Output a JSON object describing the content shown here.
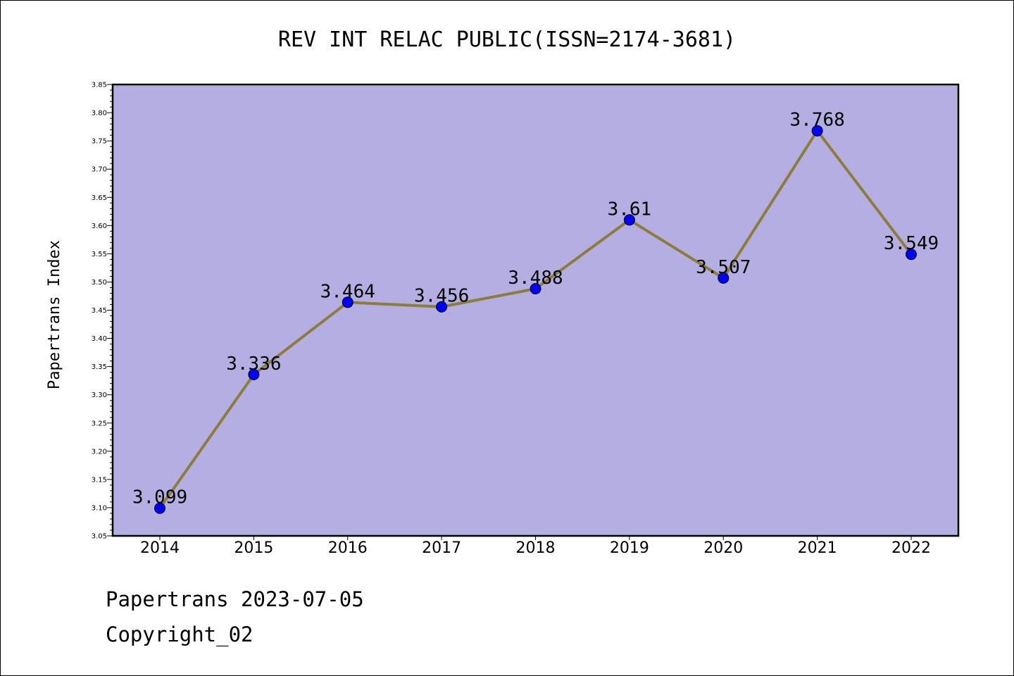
{
  "chart_data": {
    "type": "line",
    "title": "REV INT RELAC PUBLIC(ISSN=2174-3681)",
    "ylabel": "Papertrans Index",
    "xlabel": "",
    "categories": [
      "2014",
      "2015",
      "2016",
      "2017",
      "2018",
      "2019",
      "2020",
      "2021",
      "2022"
    ],
    "values": [
      3.099,
      3.336,
      3.464,
      3.456,
      3.488,
      3.61,
      3.507,
      3.768,
      3.549
    ],
    "value_labels": [
      "3.099",
      "3.336",
      "3.464",
      "3.456",
      "3.488",
      "3.61",
      "3.507",
      "3.768",
      "3.549"
    ],
    "ylim": [
      3.05,
      3.85
    ],
    "yticks": [
      "3.05",
      "3.10",
      "3.15",
      "3.20",
      "3.25",
      "3.30",
      "3.35",
      "3.40",
      "3.45",
      "3.50",
      "3.55",
      "3.60",
      "3.65",
      "3.70",
      "3.75",
      "3.80",
      "3.85"
    ],
    "grid": false,
    "colors": {
      "plot_background": "#b5aee3",
      "line": "#8b7d3a",
      "marker": "#0000ff"
    }
  },
  "footer": {
    "line1": "Papertrans 2023-07-05",
    "line2": "Copyright_02"
  }
}
